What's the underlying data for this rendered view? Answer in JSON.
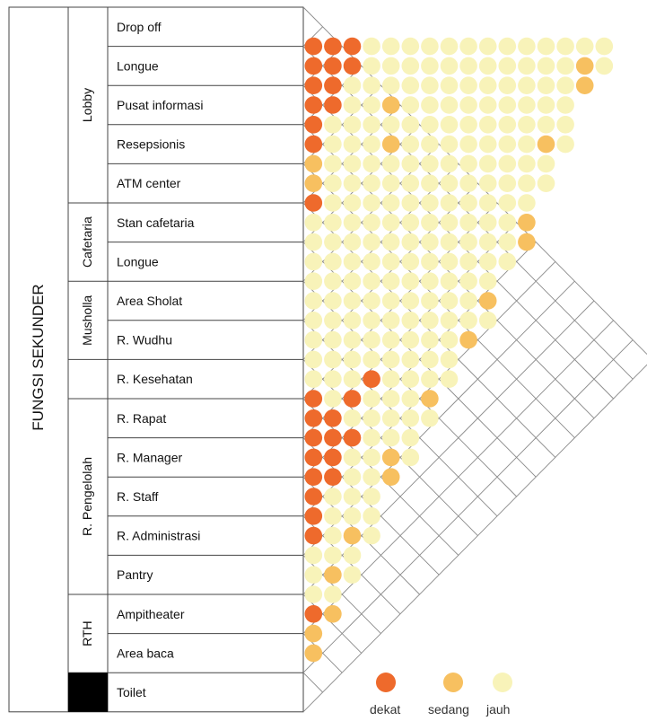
{
  "title": "FUNGSI SEKUNDER",
  "groups": [
    {
      "label": "Lobby",
      "from": 0,
      "to": 6
    },
    {
      "label": "Cafetaria",
      "from": 6,
      "to": 8
    },
    {
      "label": "Musholla",
      "from": 8,
      "to": 10
    },
    {
      "label": "",
      "from": 10,
      "to": 11
    },
    {
      "label": "R. Pengelolah",
      "from": 11,
      "to": 17
    },
    {
      "label": "RTH",
      "from": 17,
      "to": 19
    },
    {
      "label": "",
      "from": 19,
      "to": 20,
      "filled": true
    }
  ],
  "rows": [
    "Drop off",
    "Longue",
    "Pusat informasi",
    "Resepsionis",
    "ATM center",
    "Stan cafetaria",
    "Longue",
    "Area Sholat",
    "R. Wudhu",
    "R. Kesehatan",
    "R. Rapat",
    "R. Manager",
    "R. Staff",
    "R. Administrasi",
    "Pantry",
    "Ampitheater",
    "Area baca",
    "Toilet"
  ],
  "matrix": [
    "d",
    "dd",
    "ddd",
    "dddj",
    "ddjjj",
    "djjjjj",
    "sjjjjjj",
    "sjjjsjjj",
    "djjjjjjjj",
    "jjjjsjjjjj",
    "jjjjjjjjjjj",
    "jjjjjjjjjjjj",
    "jjjjjjjjjjjjj",
    "jjjjjjjjjjjjjj",
    "jjjjjjjjjjjjjjj",
    "jjjjjjjjjjjjjjsj",
    "jjjjjjjjjjjjjjsj",
    "jjjjjjjjjjjjsj",
    "djjjjjjjjjjjjj",
    "djjjjjjjjjjjj",
    "ddddjjjjjjjs",
    "ddjjjjjjjjjs",
    "dddjjjjjjs",
    "ddjjjjjjsj",
    "djjjjjsj",
    "djjjsjj",
    "jjjjsj",
    "jjsj",
    "jsjj",
    "djj",
    "ss",
    "s"
  ],
  "legend": [
    {
      "label": "dekat",
      "key": "d"
    },
    {
      "label": "sedang",
      "key": "s"
    },
    {
      "label": "jauh",
      "key": "j"
    }
  ],
  "colors": {
    "dekat": "#ee6a2c",
    "sedang": "#f7c060",
    "jauh": "#f8f3b9",
    "line": "#8a8a8a"
  }
}
